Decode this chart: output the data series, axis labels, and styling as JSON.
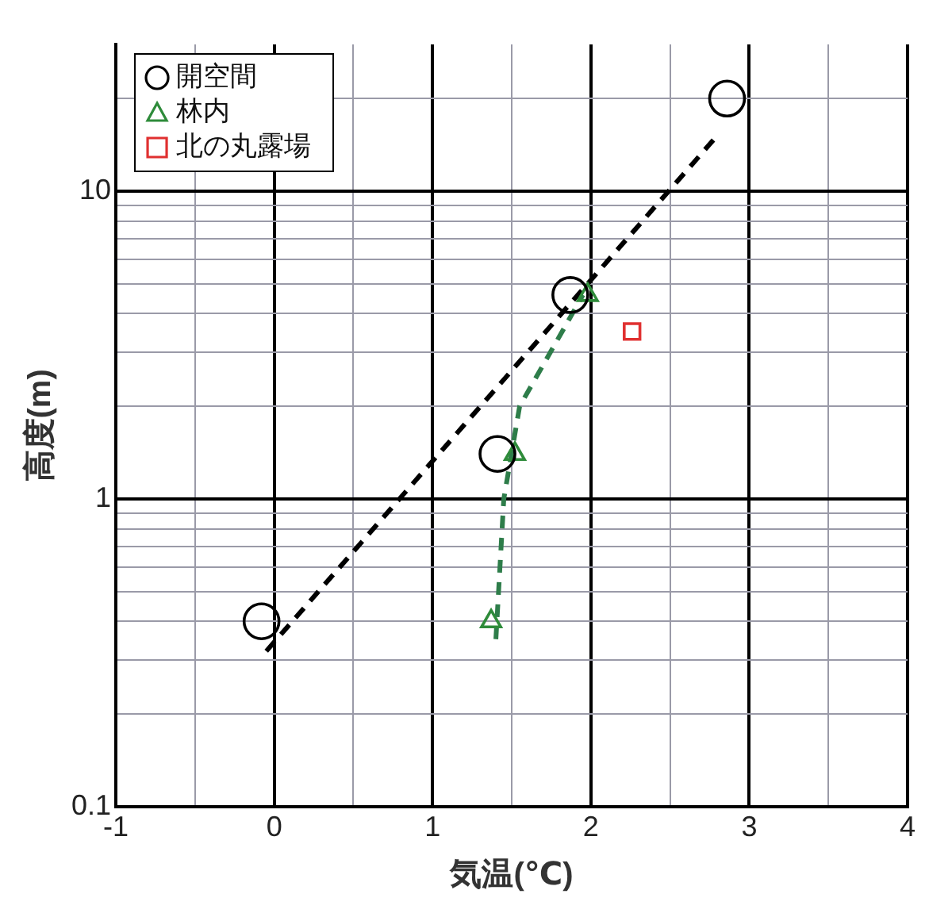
{
  "chart_data": {
    "type": "scatter",
    "xlabel": "気温(℃)",
    "ylabel": "高度(m)",
    "log": "y",
    "grid": true,
    "legend": "top left",
    "xlim": [
      -1,
      4
    ],
    "xticks": [
      -1,
      {
        "value": -0.5,
        "label": null
      },
      0,
      {
        "value": 0.5,
        "label": null
      },
      1,
      {
        "value": 1.5,
        "label": null
      },
      2,
      {
        "value": 2.5,
        "label": null
      },
      3,
      {
        "value": 3.5,
        "label": null
      },
      4
    ],
    "ylim": [
      0.1,
      30
    ],
    "yticks": [
      0.1,
      {
        "value": 0.2,
        "label": null
      },
      {
        "value": 0.3,
        "label": null
      },
      {
        "value": 0.4,
        "label": null
      },
      {
        "value": 0.5,
        "label": null
      },
      {
        "value": 0.6,
        "label": null
      },
      {
        "value": 0.7,
        "label": null
      },
      {
        "value": 0.8,
        "label": null
      },
      {
        "value": 0.9,
        "label": null
      },
      1,
      {
        "value": 2,
        "label": null
      },
      {
        "value": 3,
        "label": null
      },
      {
        "value": 4,
        "label": null
      },
      {
        "value": 5,
        "label": null
      },
      {
        "value": 6,
        "label": null
      },
      {
        "value": 7,
        "label": null
      },
      {
        "value": 8,
        "label": null
      },
      {
        "value": 9,
        "label": null
      },
      10,
      {
        "value": 20,
        "label": null
      }
    ],
    "series": [
      {
        "name": "開空間",
        "color": "#000000",
        "marker": "circle",
        "x": [
          -0.08,
          1.41,
          1.87,
          2.86
        ],
        "values": [
          0.4,
          1.4,
          4.6,
          20
        ]
      },
      {
        "name": "林内",
        "color": "#2e8b3a",
        "marker": "triangle",
        "x": [
          1.37,
          1.52,
          1.98
        ],
        "values": [
          0.4,
          1.4,
          4.6
        ]
      },
      {
        "name": "北の丸露場",
        "color": "#e03030",
        "marker": "square",
        "x": [
          2.26
        ],
        "values": [
          3.5
        ]
      },
      {
        "type": "line",
        "color": "#000000",
        "marker": "none",
        "line_style": "dashed",
        "x": [
          -0.05,
          2.79
        ],
        "values": [
          0.32,
          15
        ]
      },
      {
        "type": "line",
        "color": "#2e7d4a",
        "marker": "none",
        "line_style": "dashed",
        "x": [
          1.4,
          1.45,
          1.55,
          1.95
        ],
        "values": [
          0.35,
          1.0,
          2.0,
          4.6
        ]
      }
    ]
  }
}
